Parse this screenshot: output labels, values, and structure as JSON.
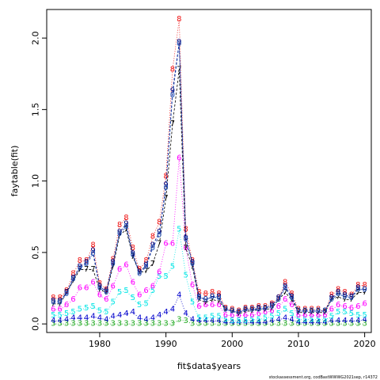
{
  "chart_data": {
    "type": "line",
    "xlabel": "fit$data$years",
    "ylabel": "faytable(fit)",
    "credit": "stockassessment.org, codBastWWWG2021sep, r14372",
    "xlim": [
      1972,
      2021
    ],
    "ylim": [
      -0.06,
      2.2
    ],
    "xticks": [
      1980,
      1990,
      2000,
      2010,
      2020
    ],
    "yticks": [
      0.0,
      0.5,
      1.0,
      1.5,
      2.0
    ],
    "x": [
      1973,
      1974,
      1975,
      1976,
      1977,
      1978,
      1979,
      1980,
      1981,
      1982,
      1983,
      1984,
      1985,
      1986,
      1987,
      1988,
      1989,
      1990,
      1991,
      1992,
      1993,
      1994,
      1995,
      1996,
      1997,
      1998,
      1999,
      2000,
      2001,
      2002,
      2003,
      2004,
      2005,
      2006,
      2007,
      2008,
      2009,
      2010,
      2011,
      2012,
      2013,
      2014,
      2015,
      2016,
      2017,
      2018,
      2019,
      2020
    ],
    "series": [
      {
        "name": "3",
        "color": "#22aa22",
        "style": "dotted",
        "values": [
          0.0,
          0.0,
          0.0,
          0.0,
          0.0,
          0.0,
          0.0,
          0.0,
          0.0,
          0.0,
          0.0,
          0.0,
          0.0,
          0.0,
          0.0,
          0.0,
          0.0,
          0.0,
          0.0,
          0.03,
          0.02,
          0.0,
          0.0,
          0.0,
          0.0,
          0.0,
          0.0,
          0.0,
          0.0,
          0.0,
          0.0,
          0.0,
          0.0,
          0.0,
          0.0,
          0.0,
          0.0,
          0.0,
          0.0,
          0.0,
          0.0,
          0.0,
          0.0,
          0.0,
          0.0,
          0.0,
          0.0,
          0.0
        ]
      },
      {
        "name": "4",
        "color": "#0000cc",
        "style": "dotted",
        "values": [
          0.02,
          0.02,
          0.03,
          0.04,
          0.04,
          0.04,
          0.05,
          0.04,
          0.03,
          0.05,
          0.06,
          0.07,
          0.08,
          0.04,
          0.03,
          0.04,
          0.06,
          0.08,
          0.1,
          0.2,
          0.07,
          0.03,
          0.02,
          0.02,
          0.02,
          0.02,
          0.01,
          0.01,
          0.01,
          0.01,
          0.01,
          0.01,
          0.01,
          0.02,
          0.03,
          0.04,
          0.03,
          0.01,
          0.01,
          0.01,
          0.01,
          0.01,
          0.02,
          0.02,
          0.02,
          0.02,
          0.02,
          0.03
        ]
      },
      {
        "name": "5",
        "color": "#00e5e5",
        "style": "dotted",
        "values": [
          0.06,
          0.06,
          0.07,
          0.08,
          0.1,
          0.11,
          0.12,
          0.09,
          0.08,
          0.15,
          0.22,
          0.23,
          0.18,
          0.13,
          0.14,
          0.23,
          0.33,
          0.33,
          0.4,
          0.66,
          0.34,
          0.15,
          0.04,
          0.04,
          0.05,
          0.05,
          0.03,
          0.02,
          0.02,
          0.02,
          0.03,
          0.03,
          0.04,
          0.05,
          0.07,
          0.1,
          0.07,
          0.03,
          0.03,
          0.03,
          0.03,
          0.03,
          0.05,
          0.08,
          0.08,
          0.07,
          0.06,
          0.06
        ]
      },
      {
        "name": "6",
        "color": "#ff00ff",
        "style": "dotted",
        "values": [
          0.1,
          0.1,
          0.13,
          0.17,
          0.25,
          0.25,
          0.29,
          0.2,
          0.17,
          0.26,
          0.38,
          0.41,
          0.29,
          0.2,
          0.23,
          0.26,
          0.36,
          0.56,
          0.56,
          1.16,
          0.53,
          0.27,
          0.12,
          0.13,
          0.13,
          0.13,
          0.06,
          0.06,
          0.06,
          0.06,
          0.06,
          0.07,
          0.08,
          0.09,
          0.12,
          0.17,
          0.13,
          0.06,
          0.06,
          0.06,
          0.06,
          0.06,
          0.1,
          0.13,
          0.12,
          0.11,
          0.12,
          0.14
        ]
      },
      {
        "name": "7",
        "color": "#000000",
        "style": "dashed",
        "values": [
          0.14,
          0.14,
          0.22,
          0.3,
          0.38,
          0.38,
          0.38,
          0.24,
          0.22,
          0.4,
          0.62,
          0.66,
          0.47,
          0.36,
          0.37,
          0.42,
          0.56,
          0.88,
          1.4,
          1.78,
          0.53,
          0.4,
          0.17,
          0.15,
          0.17,
          0.16,
          0.1,
          0.09,
          0.07,
          0.09,
          0.09,
          0.1,
          0.1,
          0.11,
          0.17,
          0.22,
          0.17,
          0.08,
          0.08,
          0.08,
          0.08,
          0.08,
          0.17,
          0.19,
          0.17,
          0.17,
          0.22,
          0.22
        ]
      },
      {
        "name": "8",
        "color": "#ee1111",
        "style": "dotted",
        "values": [
          0.18,
          0.18,
          0.23,
          0.35,
          0.44,
          0.44,
          0.55,
          0.28,
          0.24,
          0.45,
          0.69,
          0.74,
          0.53,
          0.38,
          0.44,
          0.61,
          0.71,
          1.03,
          1.78,
          2.13,
          0.66,
          0.44,
          0.22,
          0.21,
          0.22,
          0.21,
          0.11,
          0.1,
          0.09,
          0.11,
          0.11,
          0.12,
          0.12,
          0.14,
          0.18,
          0.29,
          0.21,
          0.1,
          0.1,
          0.1,
          0.1,
          0.09,
          0.2,
          0.24,
          0.22,
          0.2,
          0.27,
          0.27
        ]
      },
      {
        "name": "9",
        "color": "#00007a",
        "style": "dashed",
        "values": [
          0.16,
          0.16,
          0.22,
          0.32,
          0.4,
          0.43,
          0.51,
          0.26,
          0.23,
          0.43,
          0.64,
          0.7,
          0.49,
          0.36,
          0.41,
          0.55,
          0.64,
          0.97,
          1.63,
          1.97,
          0.6,
          0.43,
          0.19,
          0.17,
          0.19,
          0.19,
          0.1,
          0.09,
          0.08,
          0.1,
          0.1,
          0.11,
          0.11,
          0.13,
          0.18,
          0.26,
          0.19,
          0.09,
          0.09,
          0.09,
          0.09,
          0.09,
          0.18,
          0.22,
          0.2,
          0.19,
          0.25,
          0.24
        ]
      },
      {
        "name": "0",
        "color": "#1f4fb3",
        "style": "dashed",
        "values": [
          0.15,
          0.15,
          0.21,
          0.31,
          0.39,
          0.42,
          0.49,
          0.25,
          0.22,
          0.42,
          0.63,
          0.68,
          0.48,
          0.35,
          0.4,
          0.53,
          0.62,
          0.95,
          1.6,
          1.96,
          0.59,
          0.42,
          0.18,
          0.17,
          0.19,
          0.18,
          0.1,
          0.09,
          0.08,
          0.1,
          0.1,
          0.1,
          0.11,
          0.12,
          0.17,
          0.25,
          0.18,
          0.09,
          0.09,
          0.09,
          0.09,
          0.09,
          0.17,
          0.21,
          0.19,
          0.18,
          0.24,
          0.24
        ]
      }
    ]
  }
}
